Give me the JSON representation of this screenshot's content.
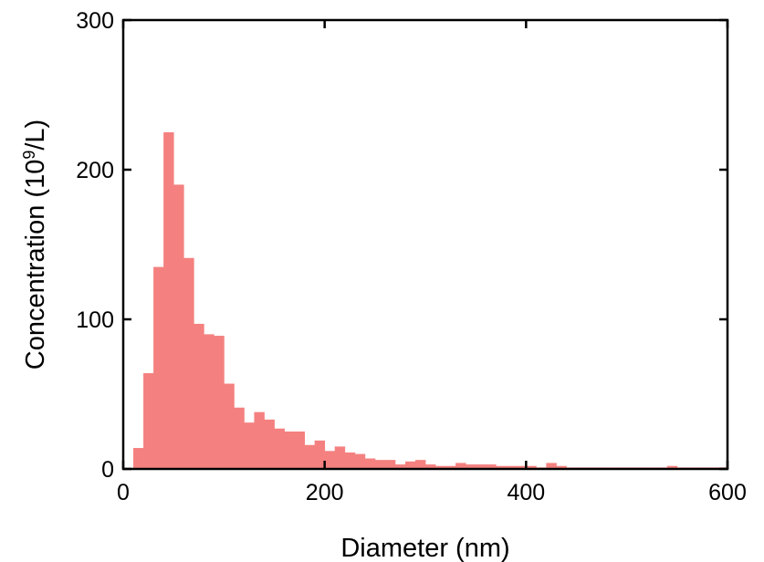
{
  "chart_data": {
    "type": "bar",
    "title": "",
    "xlabel": "Diameter (nm)",
    "ylabel": {
      "prefix": "Concentration (10",
      "sup": "9",
      "suffix": "/L)"
    },
    "xlim": [
      0,
      600
    ],
    "ylim": [
      0,
      300
    ],
    "xticks": [
      0,
      200,
      400,
      600
    ],
    "yticks": [
      0,
      100,
      200,
      300
    ],
    "grid": false,
    "bar_color": "#f4817f",
    "bin_width": 10,
    "bin_centers": [
      15,
      25,
      35,
      45,
      55,
      65,
      75,
      85,
      95,
      105,
      115,
      125,
      135,
      145,
      155,
      165,
      175,
      185,
      195,
      205,
      215,
      225,
      235,
      245,
      255,
      265,
      275,
      285,
      295,
      305,
      315,
      325,
      335,
      345,
      355,
      365,
      375,
      385,
      395,
      405,
      415,
      425,
      435,
      445,
      455,
      465,
      475,
      485,
      495,
      505,
      515,
      525,
      535,
      545,
      555,
      565,
      575,
      585,
      595
    ],
    "values": [
      14,
      64,
      135,
      225,
      190,
      141,
      97,
      90,
      89,
      57,
      41,
      31,
      38,
      33,
      27,
      25,
      25,
      16,
      19,
      12,
      15,
      11,
      10,
      7,
      6,
      6,
      3,
      5,
      6,
      3,
      2,
      2,
      4,
      3,
      3,
      3,
      2,
      2,
      2,
      2,
      1,
      4,
      2,
      1,
      1,
      1,
      1,
      1,
      1,
      1,
      1,
      1,
      1,
      2,
      1,
      1,
      1,
      1,
      1
    ]
  }
}
